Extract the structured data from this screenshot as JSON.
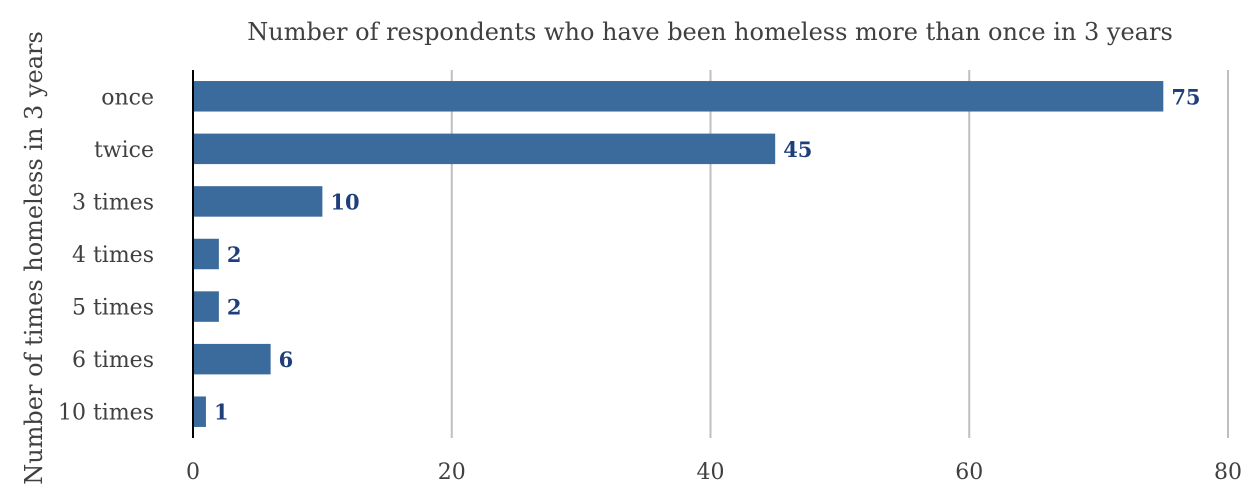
{
  "chart_data": {
    "type": "bar",
    "orientation": "horizontal",
    "title": "Number of respondents who have been homeless more than once in 3 years",
    "xlabel": "",
    "ylabel": "Number of times homeless  in 3 years",
    "categories": [
      "once",
      "twice",
      "3 times",
      "4 times",
      "5 times",
      "6 times",
      "10 times"
    ],
    "values": [
      75,
      45,
      10,
      2,
      2,
      6,
      1
    ],
    "xlim": [
      0,
      80
    ],
    "xticks": [
      "0",
      "20",
      "40",
      "60",
      "80"
    ],
    "grid": "vertical",
    "legend": "none",
    "colors": {
      "bar": "#3b6a9c",
      "data_label": "#1f3f7a",
      "grid": "#bfbfbf",
      "axis": "#000000"
    }
  }
}
